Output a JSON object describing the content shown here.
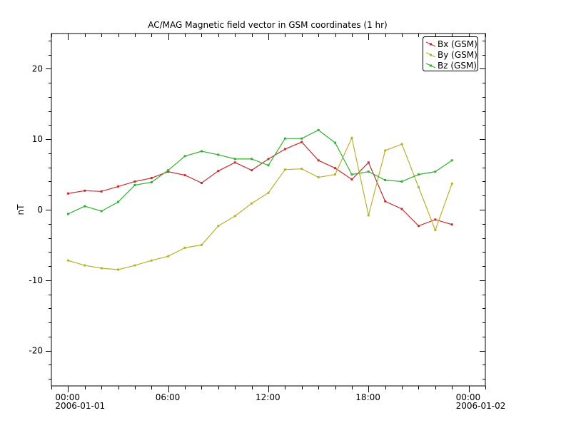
{
  "chart_data": {
    "type": "line",
    "title": "AC/MAG  Magnetic field vector in GSM coordinates (1 hr)",
    "xlabel": "",
    "ylabel": "nT",
    "x_hours": [
      0,
      1,
      2,
      3,
      4,
      5,
      6,
      7,
      8,
      9,
      10,
      11,
      12,
      13,
      14,
      15,
      16,
      17,
      18,
      19,
      20,
      21,
      22,
      23
    ],
    "xlim_hours": [
      -1,
      25
    ],
    "x_ticks": [
      {
        "hour": 0,
        "label": "00:00",
        "sublabel": "2006-01-01"
      },
      {
        "hour": 6,
        "label": "06:00",
        "sublabel": ""
      },
      {
        "hour": 12,
        "label": "12:00",
        "sublabel": ""
      },
      {
        "hour": 18,
        "label": "18:00",
        "sublabel": ""
      },
      {
        "hour": 24,
        "label": "00:00",
        "sublabel": "2006-01-02"
      }
    ],
    "ylim": [
      -25,
      25
    ],
    "y_ticks": [
      20,
      10,
      0,
      -10,
      -20
    ],
    "y_tick_labels": [
      "20",
      "10",
      "0",
      "-10",
      "-20"
    ],
    "grid": false,
    "legend_position": "top-right",
    "series": [
      {
        "name": "Bx (GSM)",
        "color": "#c03030",
        "values": [
          2.3,
          2.7,
          2.6,
          3.3,
          4.0,
          4.5,
          5.4,
          4.9,
          3.8,
          5.5,
          6.7,
          5.6,
          7.2,
          8.6,
          9.6,
          7.0,
          5.9,
          4.3,
          6.7,
          1.2,
          0.1,
          -2.3,
          -1.4,
          -2.1
        ]
      },
      {
        "name": "By (GSM)",
        "color": "#b8b030",
        "values": [
          -7.2,
          -7.9,
          -8.3,
          -8.5,
          -7.9,
          -7.2,
          -6.6,
          -5.4,
          -5.0,
          -2.3,
          -0.9,
          0.9,
          2.4,
          5.7,
          5.8,
          4.6,
          5.0,
          10.2,
          -0.8,
          8.4,
          9.3,
          3.2,
          -2.9,
          3.7
        ]
      },
      {
        "name": "Bz (GSM)",
        "color": "#30b030",
        "values": [
          -0.6,
          0.5,
          -0.2,
          1.1,
          3.5,
          3.9,
          5.6,
          7.6,
          8.3,
          7.8,
          7.2,
          7.2,
          6.3,
          10.1,
          10.1,
          11.3,
          9.5,
          5.0,
          5.4,
          4.2,
          4.0,
          5.0,
          5.4,
          7.0
        ]
      }
    ]
  }
}
